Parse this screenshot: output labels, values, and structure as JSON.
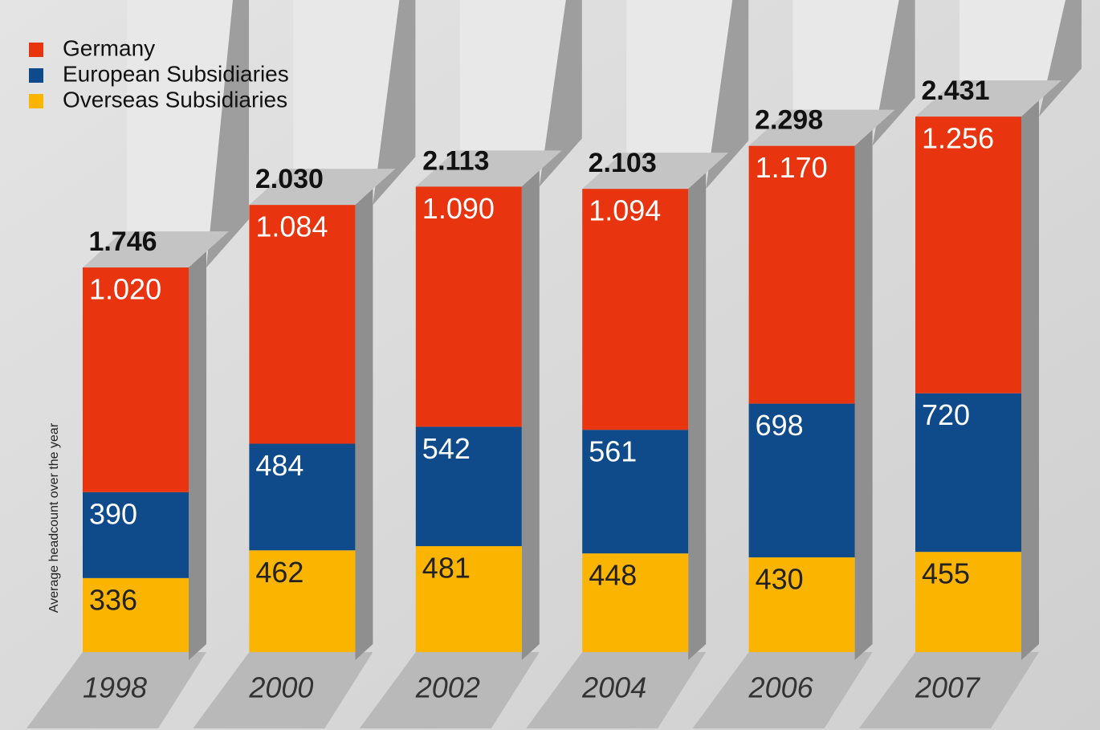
{
  "chart_data": {
    "type": "bar",
    "stacked": true,
    "y_label": "Average headcount over the year",
    "categories": [
      "1998",
      "2000",
      "2002",
      "2004",
      "2006",
      "2007"
    ],
    "series": [
      {
        "name": "Overseas Subsidiaries",
        "color": "#fbb400",
        "values": [
          336,
          462,
          481,
          448,
          430,
          455
        ]
      },
      {
        "name": "European Subsidiaries",
        "color": "#0f4a8a",
        "values": [
          390,
          484,
          542,
          561,
          698,
          720
        ]
      },
      {
        "name": "Germany",
        "color": "#e8340f",
        "values": [
          1020,
          1084,
          1090,
          1094,
          1170,
          1256
        ],
        "value_labels": [
          "1.020",
          "1.084",
          "1.090",
          "1.094",
          "1.170",
          "1.256"
        ]
      }
    ],
    "totals": {
      "values": [
        1746,
        2030,
        2113,
        2103,
        2298,
        2431
      ],
      "value_labels": [
        "1.746",
        "2.030",
        "2.113",
        "2.103",
        "2.298",
        "2.431"
      ]
    }
  }
}
